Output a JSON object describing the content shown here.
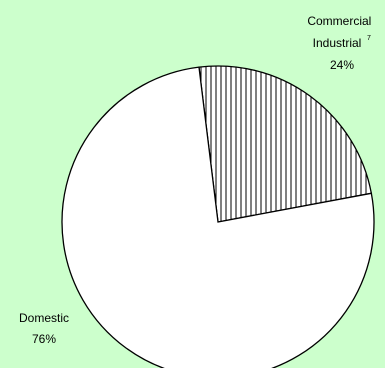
{
  "colors": {
    "background": "#ccffcc",
    "slice_fill": "#ffffff",
    "outline": "#000000"
  },
  "chart_data": {
    "type": "pie",
    "slices": [
      {
        "label_lines": [
          "Commercial",
          "Industrial"
        ],
        "footnote": "7",
        "percent_text": "24%",
        "value": 24,
        "pattern": "vertical-stripes"
      },
      {
        "label_lines": [
          "Domestic"
        ],
        "footnote": "",
        "percent_text": "76%",
        "value": 76,
        "pattern": "none"
      }
    ]
  }
}
